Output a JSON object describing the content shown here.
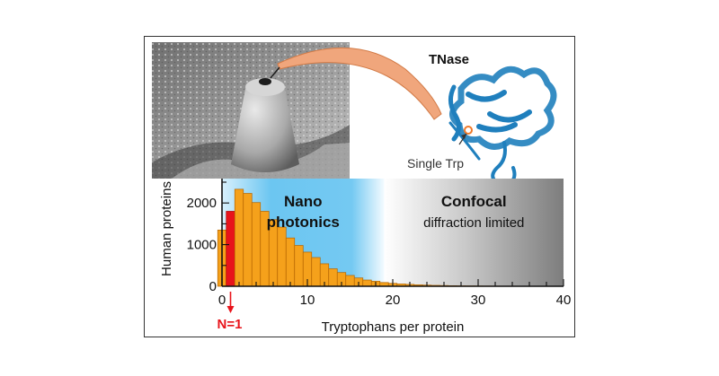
{
  "top_panel": {
    "protein_label": "TNase",
    "trp_label": "Single Trp"
  },
  "chart_data": {
    "type": "bar",
    "xlabel": "Tryptophans per protein",
    "ylabel": "Human proteins",
    "xlim": [
      0,
      40
    ],
    "ylim": [
      0,
      2500
    ],
    "x_ticks": [
      0,
      10,
      20,
      30,
      40
    ],
    "y_ticks": [
      0,
      1000,
      2000
    ],
    "grid": false,
    "x": [
      0,
      1,
      2,
      3,
      4,
      5,
      6,
      7,
      8,
      9,
      10,
      11,
      12,
      13,
      14,
      15,
      16,
      17,
      18,
      19,
      20,
      21,
      22,
      23,
      24,
      25,
      26,
      27,
      28,
      29,
      30,
      31,
      32,
      33,
      34,
      35,
      36,
      37,
      38,
      39
    ],
    "values": [
      1350,
      1800,
      2330,
      2230,
      2010,
      1800,
      1600,
      1420,
      1160,
      980,
      820,
      690,
      540,
      420,
      330,
      260,
      200,
      150,
      120,
      90,
      70,
      55,
      45,
      35,
      28,
      22,
      18,
      14,
      11,
      9,
      8,
      6,
      5,
      4,
      4,
      3,
      3,
      2,
      2,
      2
    ],
    "highlight": {
      "x": 1,
      "label": "N=1",
      "color": "#e8141b"
    },
    "bar_color": "#f5a11b",
    "regions": [
      {
        "title": "Nano",
        "subtitle": "photonics",
        "x_range": [
          0,
          19
        ],
        "color": "#2aa9e8"
      },
      {
        "title": "Confocal",
        "subtitle": "diffraction limited",
        "x_range": [
          19,
          40
        ],
        "color": "#8a8a8a"
      }
    ]
  }
}
